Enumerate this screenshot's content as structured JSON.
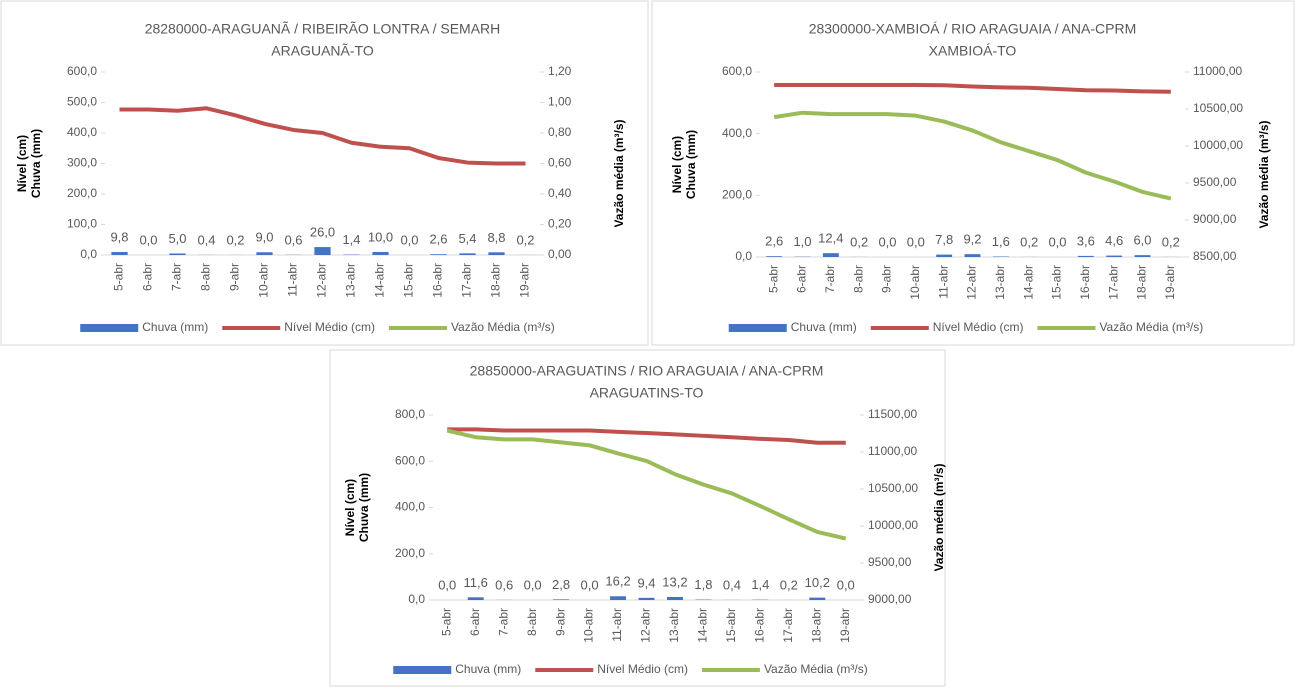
{
  "chart_data": [
    {
      "type": "combo",
      "title": [
        "28280000-ARAGUANÃ / RIBEIRÃO LONTRA / SEMARH",
        "ARAGUANÃ-TO"
      ],
      "y_label": [
        "Nível (cm)",
        "Chuva (mm)"
      ],
      "y2_label": "Vazão média (m³/s)",
      "categories": [
        "5-abr",
        "6-abr",
        "7-abr",
        "8-abr",
        "9-abr",
        "10-abr",
        "11-abr",
        "12-abr",
        "13-abr",
        "14-abr",
        "15-abr",
        "16-abr",
        "17-abr",
        "18-abr",
        "19-abr"
      ],
      "ylim": [
        0,
        600
      ],
      "yticks": [
        {
          "value": 0,
          "label": "0,0"
        },
        {
          "value": 100,
          "label": "100,0"
        },
        {
          "value": 200,
          "label": "200,0"
        },
        {
          "value": 300,
          "label": "300,0"
        },
        {
          "value": 400,
          "label": "400,0"
        },
        {
          "value": 500,
          "label": "500,0"
        },
        {
          "value": 600,
          "label": "600,0"
        }
      ],
      "y2lim": [
        0,
        1.2
      ],
      "y2ticks": [
        {
          "value": 0,
          "label": "0,00"
        },
        {
          "value": 0.2,
          "label": "0,20"
        },
        {
          "value": 0.4,
          "label": "0,40"
        },
        {
          "value": 0.6,
          "label": "0,60"
        },
        {
          "value": 0.8,
          "label": "0,80"
        },
        {
          "value": 1.0,
          "label": "1,00"
        },
        {
          "value": 1.2,
          "label": "1,20"
        }
      ],
      "series": [
        {
          "name": "Chuva (mm)",
          "type": "bar",
          "color": "#4472c4",
          "values": [
            9.8,
            0,
            5.0,
            0.4,
            0.2,
            9.0,
            0.6,
            26.0,
            1.4,
            10.0,
            0,
            2.6,
            5.4,
            8.8,
            0.2
          ],
          "value_labels": [
            "9,8",
            "0,0",
            "5,0",
            "0,4",
            "0,2",
            "9,0",
            "0,6",
            "26,0",
            "1,4",
            "10,0",
            "0,0",
            "2,6",
            "5,4",
            "8,8",
            "0,2"
          ]
        },
        {
          "name": "Nível Médio (cm)",
          "type": "line",
          "color": "#c0504d",
          "values": [
            477,
            477,
            473,
            481,
            458,
            430,
            410,
            400,
            368,
            355,
            350,
            318,
            303,
            300,
            300
          ]
        },
        {
          "name": "Vazão Média (m³/s)",
          "type": "line",
          "color": "#9bbb59",
          "axis": "y2",
          "values": [
            null,
            null,
            null,
            null,
            null,
            null,
            null,
            null,
            null,
            null,
            null,
            null,
            null,
            null,
            null
          ]
        }
      ]
    },
    {
      "type": "combo",
      "title": [
        "28300000-XAMBIOÁ / RIO ARAGUAIA / ANA-CPRM",
        "XAMBIOÁ-TO"
      ],
      "y_label": [
        "Nível (cm)",
        "Chuva (mm)"
      ],
      "y2_label": "Vazão média (m³/s)",
      "categories": [
        "5-abr",
        "6-abr",
        "7-abr",
        "8-abr",
        "9-abr",
        "10-abr",
        "11-abr",
        "12-abr",
        "13-abr",
        "14-abr",
        "15-abr",
        "16-abr",
        "17-abr",
        "18-abr",
        "19-abr"
      ],
      "ylim": [
        0,
        600
      ],
      "yticks": [
        {
          "value": 0,
          "label": "0,0"
        },
        {
          "value": 200,
          "label": "200,0"
        },
        {
          "value": 400,
          "label": "400,0"
        },
        {
          "value": 600,
          "label": "600,0"
        }
      ],
      "y2lim": [
        8500,
        11000
      ],
      "y2ticks": [
        {
          "value": 8500,
          "label": "8500,00"
        },
        {
          "value": 9000,
          "label": "9000,00"
        },
        {
          "value": 9500,
          "label": "9500,00"
        },
        {
          "value": 10000,
          "label": "10000,00"
        },
        {
          "value": 10500,
          "label": "10500,00"
        },
        {
          "value": 11000,
          "label": "11000,00"
        }
      ],
      "series": [
        {
          "name": "Chuva (mm)",
          "type": "bar",
          "color": "#4472c4",
          "values": [
            2.6,
            1.0,
            12.4,
            0.2,
            0,
            0,
            7.8,
            9.2,
            1.6,
            0.2,
            0,
            3.6,
            4.6,
            6.0,
            0.2
          ],
          "value_labels": [
            "2,6",
            "1,0",
            "12,4",
            "0,2",
            "0,0",
            "0,0",
            "7,8",
            "9,2",
            "1,6",
            "0,2",
            "0,0",
            "3,6",
            "4,6",
            "6,0",
            "0,2"
          ]
        },
        {
          "name": "Nível Médio (cm)",
          "type": "line",
          "color": "#c0504d",
          "values": [
            558,
            558,
            558,
            558,
            558,
            558,
            557,
            553,
            550,
            549,
            545,
            541,
            540,
            537,
            536
          ]
        },
        {
          "name": "Vazão Média (m³/s)",
          "type": "line",
          "color": "#9bbb59",
          "axis": "y2",
          "values": [
            10390,
            10450,
            10430,
            10430,
            10430,
            10410,
            10330,
            10210,
            10050,
            9930,
            9810,
            9640,
            9520,
            9380,
            9290
          ]
        }
      ]
    },
    {
      "type": "combo",
      "title": [
        "28850000-ARAGUATINS / RIO ARAGUAIA / ANA-CPRM",
        "ARAGUATINS-TO"
      ],
      "y_label": [
        "Nível (cm)",
        "Chuva (mm)"
      ],
      "y2_label": "Vazão média (m³/s)",
      "categories": [
        "5-abr",
        "6-abr",
        "7-abr",
        "8-abr",
        "9-abr",
        "10-abr",
        "11-abr",
        "12-abr",
        "13-abr",
        "14-abr",
        "15-abr",
        "16-abr",
        "17-abr",
        "18-abr",
        "19-abr"
      ],
      "ylim": [
        0,
        800
      ],
      "yticks": [
        {
          "value": 0,
          "label": "0,0"
        },
        {
          "value": 200,
          "label": "200,0"
        },
        {
          "value": 400,
          "label": "400,0"
        },
        {
          "value": 600,
          "label": "600,0"
        },
        {
          "value": 800,
          "label": "800,0"
        }
      ],
      "y2lim": [
        9000,
        11500
      ],
      "y2ticks": [
        {
          "value": 9000,
          "label": "9000,00"
        },
        {
          "value": 9500,
          "label": "9500,00"
        },
        {
          "value": 10000,
          "label": "10000,00"
        },
        {
          "value": 10500,
          "label": "10500,00"
        },
        {
          "value": 11000,
          "label": "11000,00"
        },
        {
          "value": 11500,
          "label": "11500,00"
        }
      ],
      "series": [
        {
          "name": "Chuva (mm)",
          "type": "bar",
          "color": "#4472c4",
          "values": [
            0,
            11.6,
            0.6,
            0,
            2.8,
            0,
            16.2,
            9.4,
            13.2,
            1.8,
            0.4,
            1.4,
            0.2,
            10.2,
            0
          ],
          "value_labels": [
            "0,0",
            "11,6",
            "0,6",
            "0,0",
            "2,8",
            "0,0",
            "16,2",
            "9,4",
            "13,2",
            "1,8",
            "0,4",
            "1,4",
            "0,2",
            "10,2",
            "0,0"
          ]
        },
        {
          "name": "Nível Médio (cm)",
          "type": "line",
          "color": "#c0504d",
          "values": [
            738,
            738,
            733,
            733,
            733,
            733,
            727,
            722,
            716,
            710,
            704,
            697,
            692,
            680,
            680
          ]
        },
        {
          "name": "Vazão Média (m³/s)",
          "type": "line",
          "color": "#9bbb59",
          "axis": "y2",
          "values": [
            11290,
            11200,
            11170,
            11170,
            11130,
            11090,
            10980,
            10880,
            10700,
            10560,
            10440,
            10270,
            10090,
            9920,
            9830
          ]
        }
      ]
    }
  ]
}
